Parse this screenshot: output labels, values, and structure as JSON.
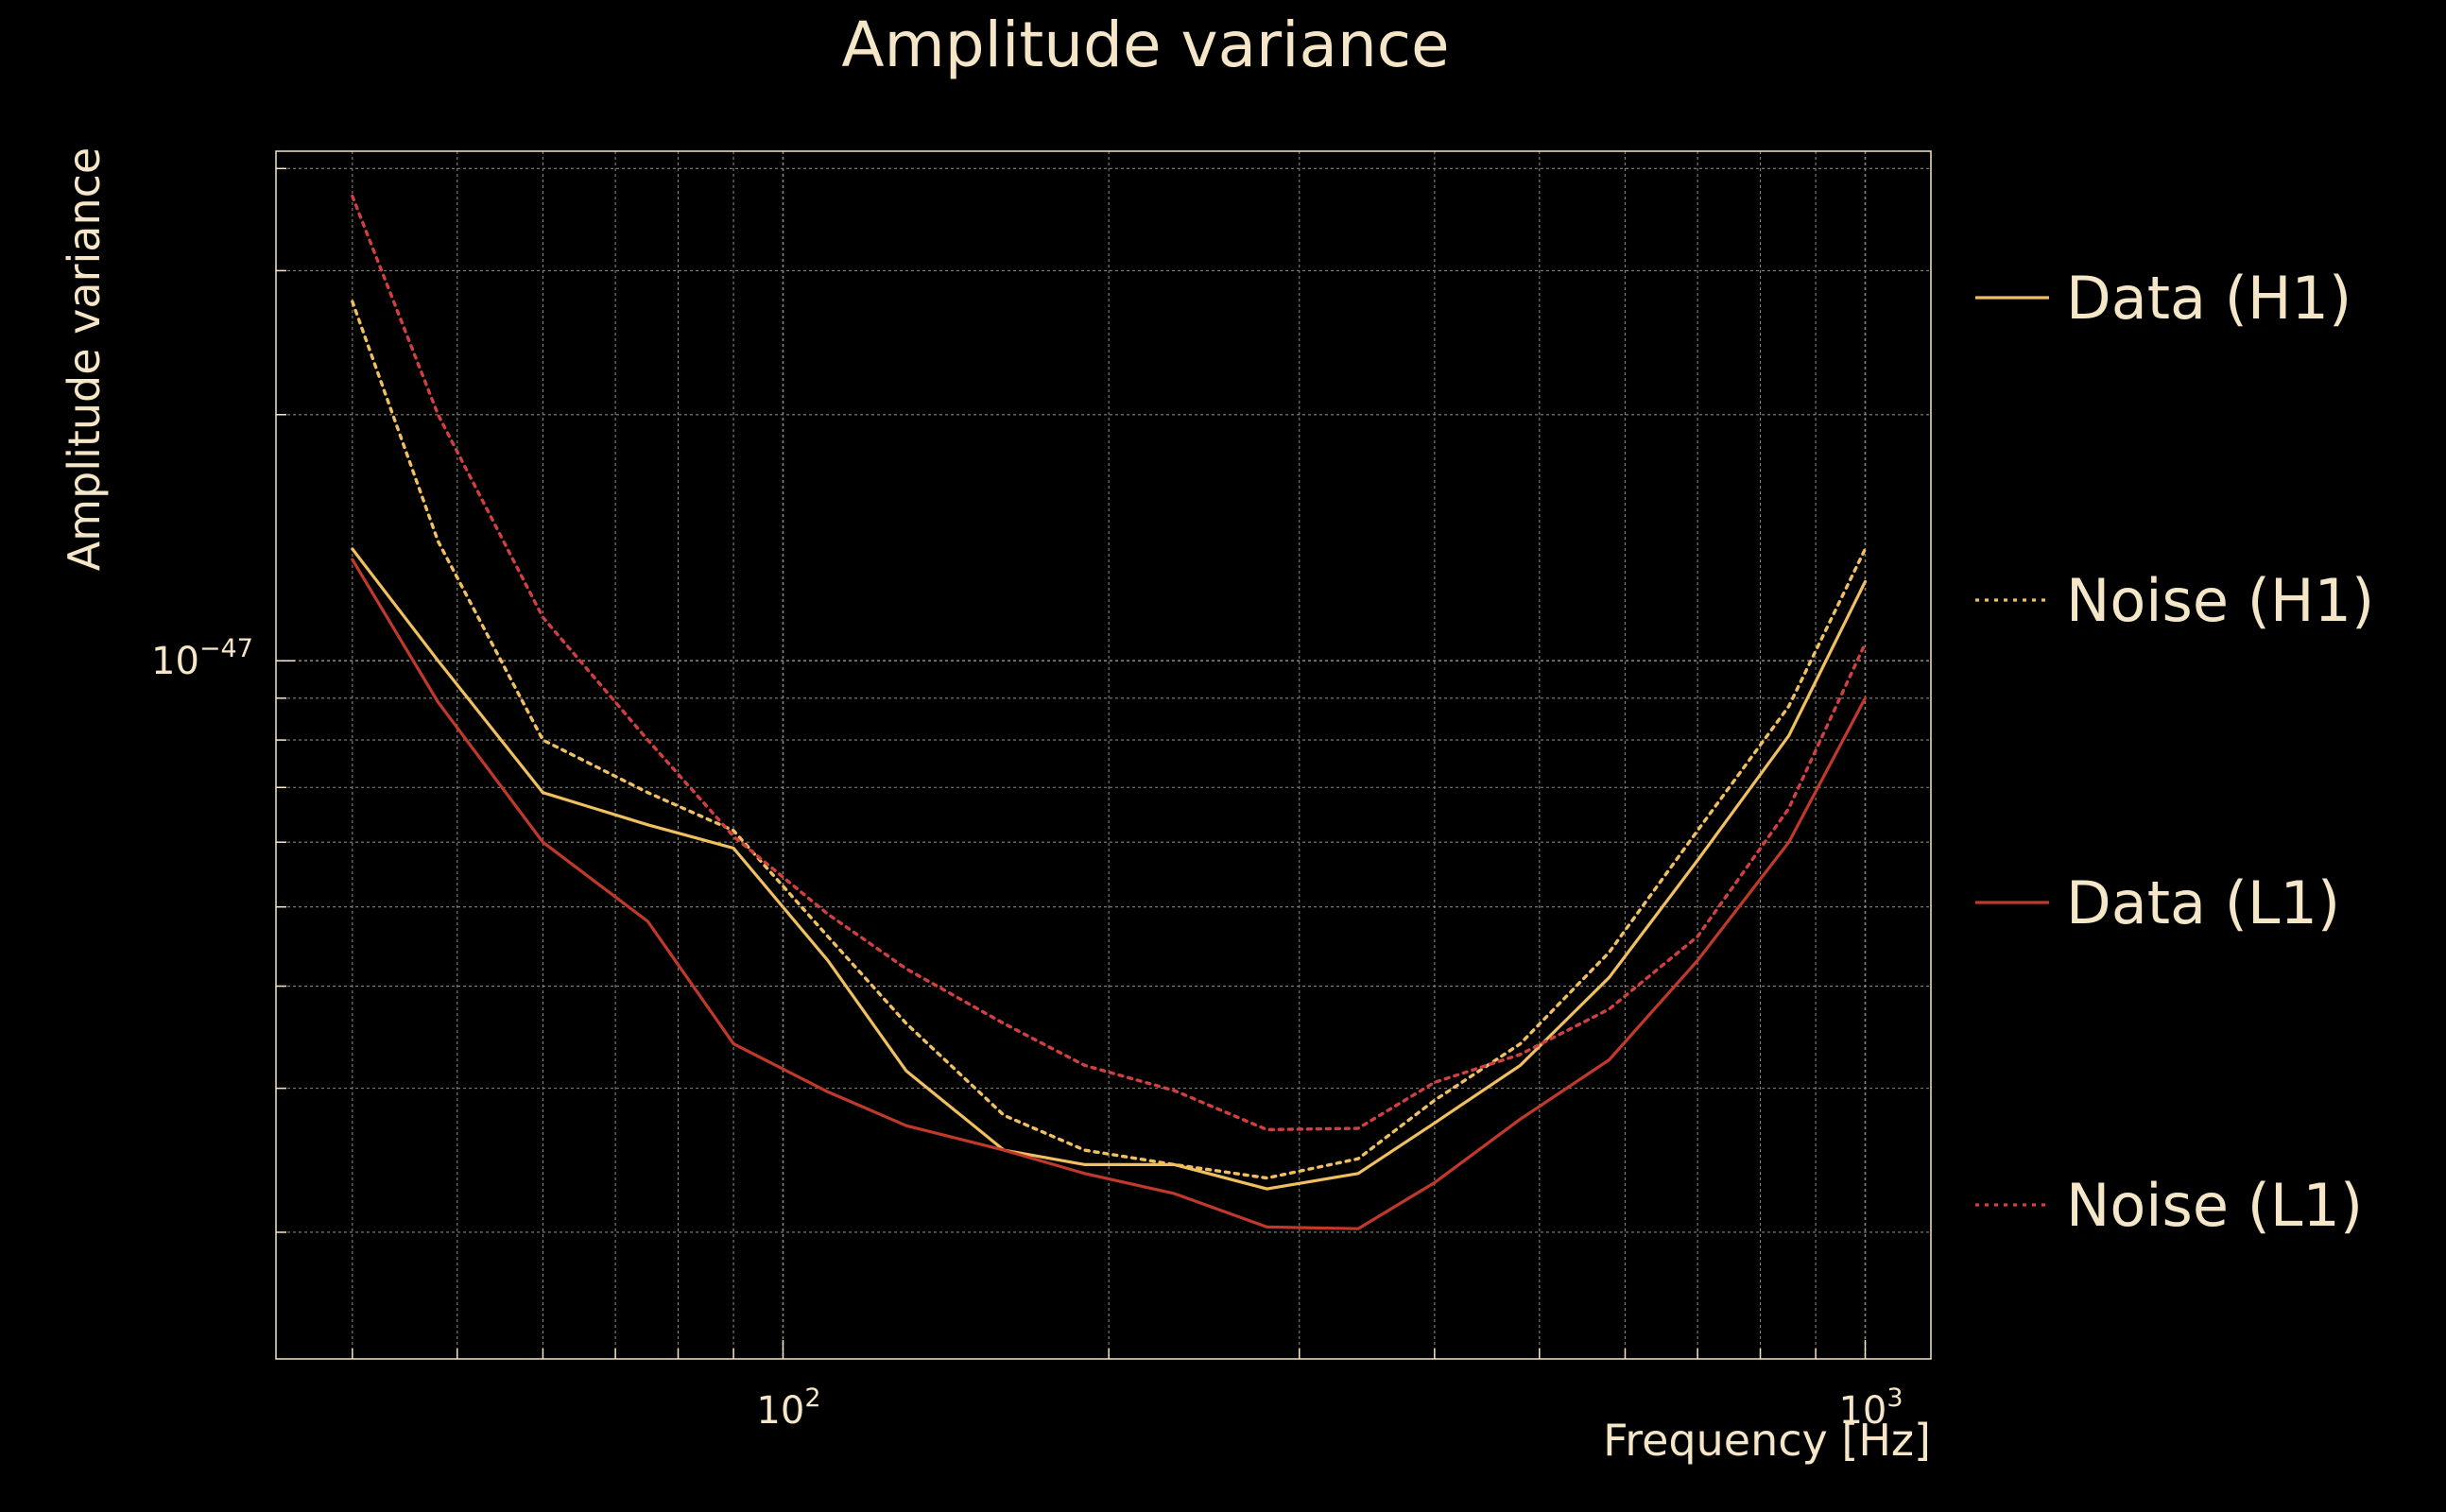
{
  "chart_data": {
    "type": "line",
    "title": "Amplitude variance",
    "xlabel": "Frequency [Hz]",
    "ylabel": "Amplitude variance",
    "xscale": "log",
    "yscale": "log",
    "xlim": [
      34,
      1150
    ],
    "ylim": [
      1.4e-48,
      4.2e-47
    ],
    "grid": true,
    "legend_position": "right",
    "xticks": [
      {
        "value": 100,
        "base": "10",
        "exp": "2"
      },
      {
        "value": 1000,
        "base": "10",
        "exp": "3"
      }
    ],
    "yticks": [
      {
        "value": 1e-47,
        "base": "10",
        "exp": "−47"
      }
    ],
    "x": [
      40,
      48,
      60,
      75,
      90,
      110,
      130,
      160,
      190,
      230,
      280,
      340,
      400,
      480,
      580,
      700,
      850,
      1000
    ],
    "series": [
      {
        "name": "Data (H1)",
        "color": "#f0c060",
        "style": "solid",
        "values": [
          1.37e-47,
          1e-47,
          6.9e-48,
          6.3e-48,
          5.9e-48,
          4.3e-48,
          3.15e-48,
          2.52e-48,
          2.42e-48,
          2.42e-48,
          2.26e-48,
          2.36e-48,
          2.72e-48,
          3.2e-48,
          4.1e-48,
          5.7e-48,
          8.1e-48,
          1.25e-47
        ]
      },
      {
        "name": "Noise (H1)",
        "color": "#f0c060",
        "style": "dotted",
        "values": [
          2.75e-47,
          1.4e-47,
          8e-48,
          6.9e-48,
          6.2e-48,
          4.6e-48,
          3.6e-48,
          2.78e-48,
          2.52e-48,
          2.42e-48,
          2.33e-48,
          2.46e-48,
          2.9e-48,
          3.4e-48,
          4.4e-48,
          6.2e-48,
          8.8e-48,
          1.37e-47
        ]
      },
      {
        "name": "Data (L1)",
        "color": "#c0392b",
        "style": "solid",
        "values": [
          1.33e-47,
          8.9e-48,
          6e-48,
          4.8e-48,
          3.4e-48,
          2.97e-48,
          2.7e-48,
          2.52e-48,
          2.36e-48,
          2.23e-48,
          2.03e-48,
          2.02e-48,
          2.3e-48,
          2.75e-48,
          3.25e-48,
          4.3e-48,
          6e-48,
          9e-48
        ]
      },
      {
        "name": "Noise (L1)",
        "color": "#d04040",
        "style": "dotted",
        "values": [
          3.7e-47,
          2e-47,
          1.13e-47,
          8e-48,
          6.1e-48,
          4.9e-48,
          4.2e-48,
          3.6e-48,
          3.2e-48,
          2.98e-48,
          2.67e-48,
          2.68e-48,
          3.05e-48,
          3.3e-48,
          3.75e-48,
          4.6e-48,
          6.6e-48,
          1.05e-47
        ]
      }
    ]
  }
}
